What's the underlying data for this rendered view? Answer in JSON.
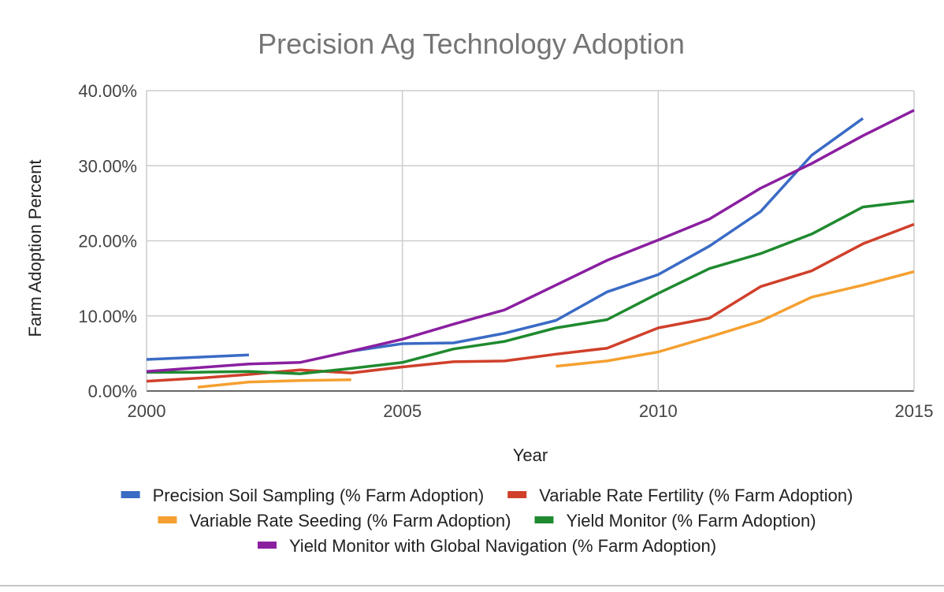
{
  "chart_data": {
    "type": "line",
    "title": "Precision Ag Technology Adoption",
    "xlabel": "Year",
    "ylabel": "Farm Adoption Percent",
    "xlim": [
      2000,
      2015
    ],
    "ylim": [
      0,
      40
    ],
    "x_ticks": [
      2000,
      2005,
      2010,
      2015
    ],
    "x_tick_labels": [
      "2000",
      "2005",
      "2010",
      "2015"
    ],
    "y_ticks": [
      0,
      10,
      20,
      30,
      40
    ],
    "y_tick_labels": [
      "0.00%",
      "10.00%",
      "20.00%",
      "30.00%",
      "40.00%"
    ],
    "grid": true,
    "legend_position": "bottom",
    "series": [
      {
        "name": "Precision Soil Sampling (% Farm Adoption)",
        "color": "#3a6bc5",
        "segments": [
          [
            [
              2000,
              4.2
            ],
            [
              2002,
              4.8
            ]
          ],
          [
            [
              2004,
              5.3
            ],
            [
              2005,
              6.3
            ],
            [
              2006,
              6.4
            ],
            [
              2007,
              7.7
            ],
            [
              2008,
              9.4
            ],
            [
              2009,
              13.2
            ],
            [
              2010,
              15.5
            ],
            [
              2011,
              19.3
            ],
            [
              2012,
              23.9
            ],
            [
              2013,
              31.4
            ],
            [
              2014,
              36.3
            ]
          ]
        ]
      },
      {
        "name": "Variable Rate Fertility (% Farm Adoption)",
        "color": "#d0402b",
        "segments": [
          [
            [
              2000,
              1.3
            ],
            [
              2001,
              1.7
            ],
            [
              2002,
              2.2
            ],
            [
              2003,
              2.8
            ],
            [
              2004,
              2.4
            ],
            [
              2005,
              3.2
            ],
            [
              2006,
              3.9
            ],
            [
              2007,
              4.0
            ],
            [
              2008,
              4.9
            ],
            [
              2009,
              5.7
            ],
            [
              2010,
              8.4
            ],
            [
              2011,
              9.7
            ],
            [
              2012,
              13.9
            ],
            [
              2013,
              16.0
            ],
            [
              2014,
              19.6
            ],
            [
              2015,
              22.2
            ]
          ]
        ]
      },
      {
        "name": "Variable Rate Seeding (% Farm Adoption)",
        "color": "#f5a030",
        "segments": [
          [
            [
              2001,
              0.5
            ],
            [
              2002,
              1.2
            ],
            [
              2003,
              1.4
            ],
            [
              2004,
              1.5
            ]
          ],
          [
            [
              2008,
              3.3
            ],
            [
              2009,
              4.0
            ],
            [
              2010,
              5.2
            ],
            [
              2011,
              7.2
            ],
            [
              2012,
              9.3
            ],
            [
              2013,
              12.5
            ],
            [
              2014,
              14.1
            ],
            [
              2015,
              15.9
            ]
          ]
        ]
      },
      {
        "name": "Yield Monitor (% Farm Adoption)",
        "color": "#1f8a2f",
        "segments": [
          [
            [
              2000,
              2.5
            ],
            [
              2001,
              2.5
            ],
            [
              2002,
              2.6
            ],
            [
              2003,
              2.3
            ],
            [
              2004,
              3.0
            ],
            [
              2005,
              3.8
            ],
            [
              2006,
              5.6
            ],
            [
              2007,
              6.6
            ],
            [
              2008,
              8.4
            ],
            [
              2009,
              9.5
            ],
            [
              2010,
              13.0
            ],
            [
              2011,
              16.3
            ],
            [
              2012,
              18.3
            ],
            [
              2013,
              20.9
            ],
            [
              2014,
              24.5
            ],
            [
              2015,
              25.3
            ]
          ]
        ]
      },
      {
        "name": "Yield Monitor with Global Navigation (% Farm Adoption)",
        "color": "#8a1fa0",
        "segments": [
          [
            [
              2000,
              2.6
            ],
            [
              2001,
              3.1
            ],
            [
              2002,
              3.6
            ],
            [
              2003,
              3.8
            ],
            [
              2004,
              5.3
            ],
            [
              2005,
              6.9
            ],
            [
              2006,
              8.9
            ],
            [
              2007,
              10.8
            ],
            [
              2008,
              14.1
            ],
            [
              2009,
              17.4
            ],
            [
              2010,
              20.1
            ],
            [
              2011,
              22.9
            ],
            [
              2012,
              27.0
            ],
            [
              2013,
              30.3
            ],
            [
              2014,
              34.0
            ],
            [
              2015,
              37.4
            ]
          ]
        ]
      }
    ]
  }
}
